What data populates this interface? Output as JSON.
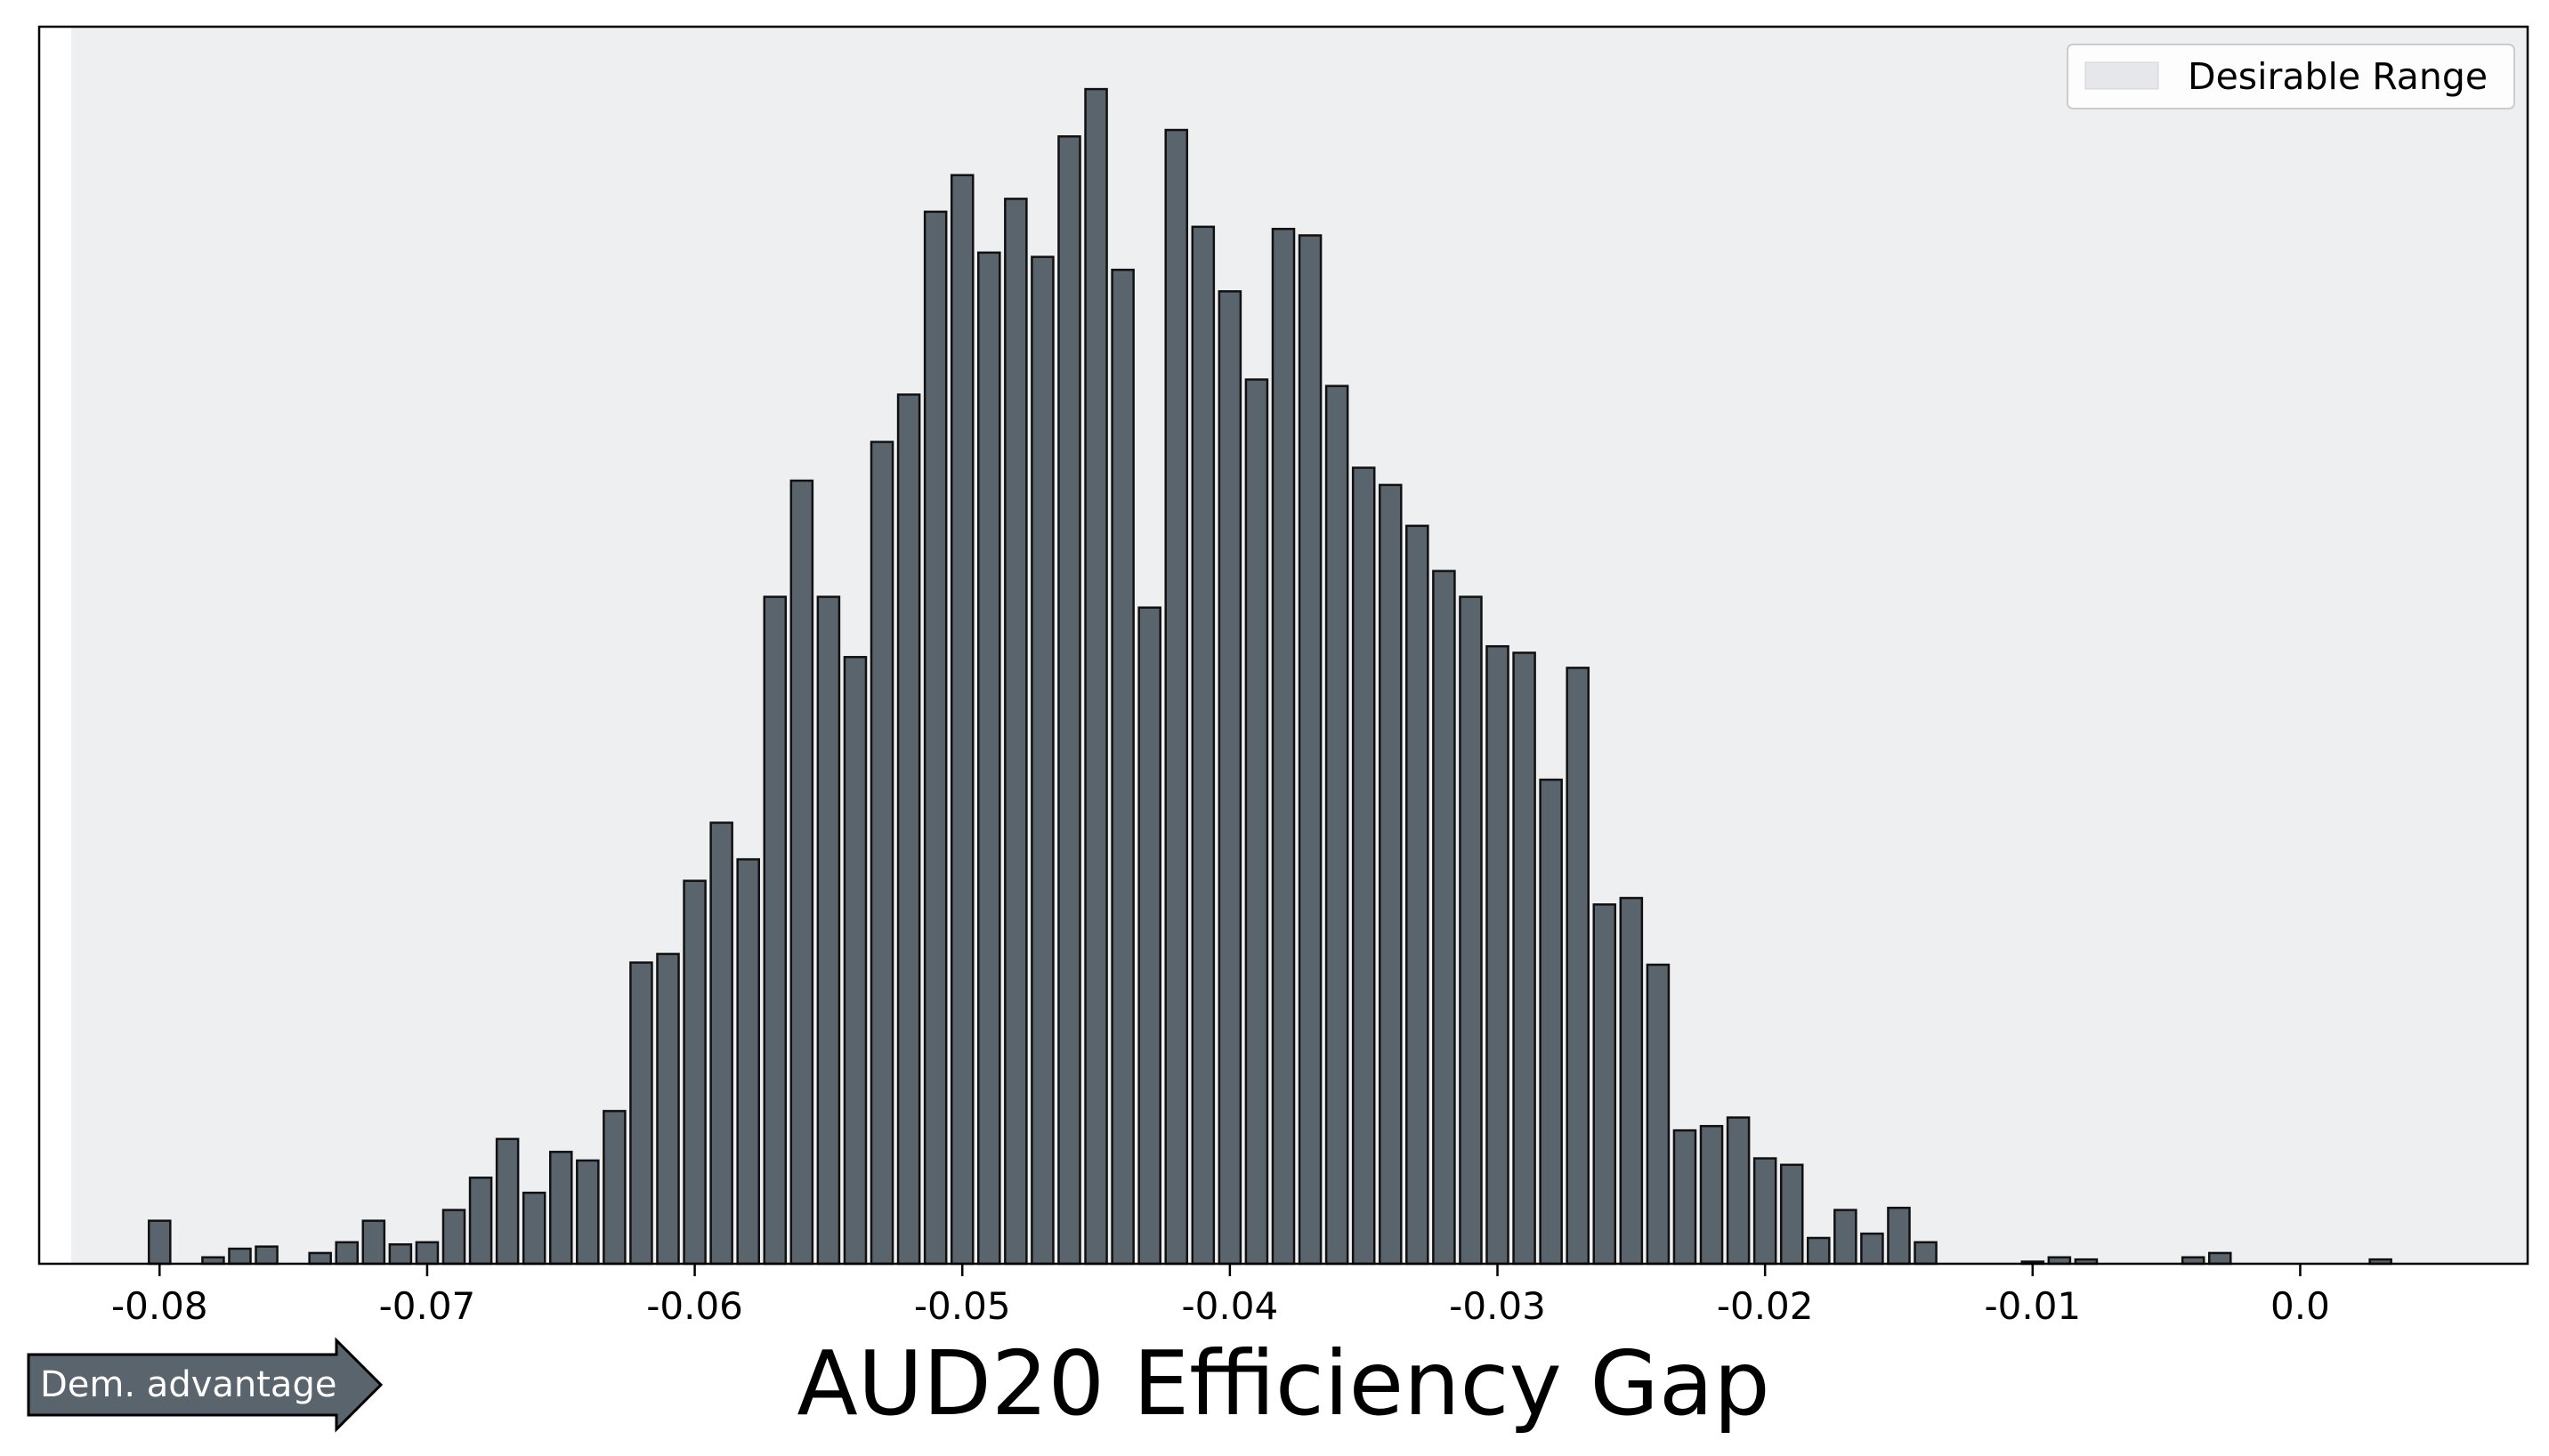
{
  "chart_data": {
    "type": "bar",
    "title": "",
    "xlabel": "AUD20 Efficiency Gap",
    "ylabel": "",
    "bin_width": 0.001,
    "x": [
      -0.08,
      -0.079,
      -0.078,
      -0.077,
      -0.076,
      -0.075,
      -0.074,
      -0.073,
      -0.072,
      -0.071,
      -0.07,
      -0.069,
      -0.068,
      -0.067,
      -0.066,
      -0.065,
      -0.064,
      -0.063,
      -0.062,
      -0.061,
      -0.06,
      -0.059,
      -0.058,
      -0.057,
      -0.056,
      -0.055,
      -0.054,
      -0.053,
      -0.052,
      -0.051,
      -0.05,
      -0.049,
      -0.048,
      -0.047,
      -0.046,
      -0.045,
      -0.044,
      -0.043,
      -0.042,
      -0.041,
      -0.04,
      -0.039,
      -0.038,
      -0.037,
      -0.036,
      -0.035,
      -0.034,
      -0.033,
      -0.032,
      -0.031,
      -0.03,
      -0.029,
      -0.028,
      -0.027,
      -0.026,
      -0.025,
      -0.024,
      -0.023,
      -0.022,
      -0.021,
      -0.02,
      -0.019,
      -0.018,
      -0.017,
      -0.016,
      -0.015,
      -0.014,
      -0.013,
      -0.012,
      -0.011,
      -0.01,
      -0.009,
      -0.008,
      -0.007,
      -0.006,
      -0.005,
      -0.004,
      -0.003,
      -0.002,
      -0.001,
      0.0,
      0.001,
      0.002,
      0.003,
      0.004
    ],
    "values": [
      2.0,
      0.0,
      0.3,
      0.7,
      0.8,
      0.0,
      0.5,
      1.0,
      2.0,
      0.9,
      1.0,
      2.5,
      4.0,
      5.8,
      3.3,
      5.2,
      4.8,
      7.1,
      14.0,
      14.4,
      17.8,
      20.5,
      18.8,
      31.0,
      36.4,
      31.0,
      28.2,
      38.2,
      40.4,
      48.9,
      50.6,
      47.0,
      49.5,
      46.8,
      52.4,
      54.6,
      46.2,
      30.5,
      52.7,
      48.2,
      45.2,
      41.1,
      48.1,
      47.8,
      40.8,
      37.0,
      36.2,
      34.3,
      32.2,
      31.0,
      28.7,
      28.4,
      22.5,
      27.7,
      16.7,
      17.0,
      13.9,
      6.2,
      6.4,
      6.8,
      4.9,
      4.6,
      1.2,
      2.5,
      1.4,
      2.6,
      1.0,
      0.0,
      0.0,
      0.0,
      0.1,
      0.3,
      0.2,
      0.0,
      0.0,
      0.0,
      0.3,
      0.5,
      0.0,
      0.0,
      0.0,
      0.0,
      0.0,
      0.2,
      0.0
    ],
    "xlim": [
      -0.0845,
      0.0085
    ],
    "ylim": [
      0,
      57.5
    ],
    "xticks": [
      -0.08,
      -0.07,
      -0.06,
      -0.05,
      -0.04,
      -0.03,
      -0.02,
      -0.01,
      0.0
    ],
    "xtick_labels": [
      "-0.08",
      "-0.07",
      "-0.06",
      "-0.05",
      "-0.04",
      "-0.03",
      "-0.02",
      "-0.01",
      "0.0"
    ],
    "desirable_range": [
      -0.0833,
      0.0085
    ],
    "legend": {
      "label": "Desirable Range",
      "placement": "top-right"
    },
    "yticks_visible": false,
    "bar_color": "#5a646c",
    "bar_edge_color": "#111111",
    "range_color": "#eeeff1"
  },
  "annotation": {
    "arrow_label": "Dem. advantage",
    "arrow_color": "#5a646c"
  }
}
